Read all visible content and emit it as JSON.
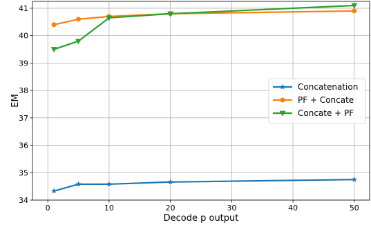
{
  "chart_data": {
    "type": "line",
    "title": "",
    "xlabel": "Decode p output",
    "ylabel": "EM",
    "xlim": [
      -2.5,
      52.5
    ],
    "ylim": [
      34,
      41.25
    ],
    "xticks": [
      0,
      10,
      20,
      30,
      40,
      50
    ],
    "yticks": [
      34,
      35,
      36,
      37,
      38,
      39,
      40,
      41
    ],
    "grid": true,
    "legend_position": "center-right",
    "series": [
      {
        "name": "Concatenation",
        "color": "#1f77b4",
        "marker": "star",
        "x": [
          1,
          5,
          10,
          20,
          50
        ],
        "y": [
          34.33,
          34.58,
          34.58,
          34.66,
          34.75
        ]
      },
      {
        "name": "PF + Concate",
        "color": "#ff7f0e",
        "marker": "circle",
        "x": [
          1,
          5,
          10,
          20,
          50
        ],
        "y": [
          40.4,
          40.6,
          40.7,
          40.8,
          40.9
        ]
      },
      {
        "name": "Concate + PF",
        "color": "#2ca02c",
        "marker": "triangle-down",
        "x": [
          1,
          5,
          10,
          20,
          50
        ],
        "y": [
          39.5,
          39.8,
          40.65,
          40.8,
          41.1
        ]
      }
    ]
  }
}
